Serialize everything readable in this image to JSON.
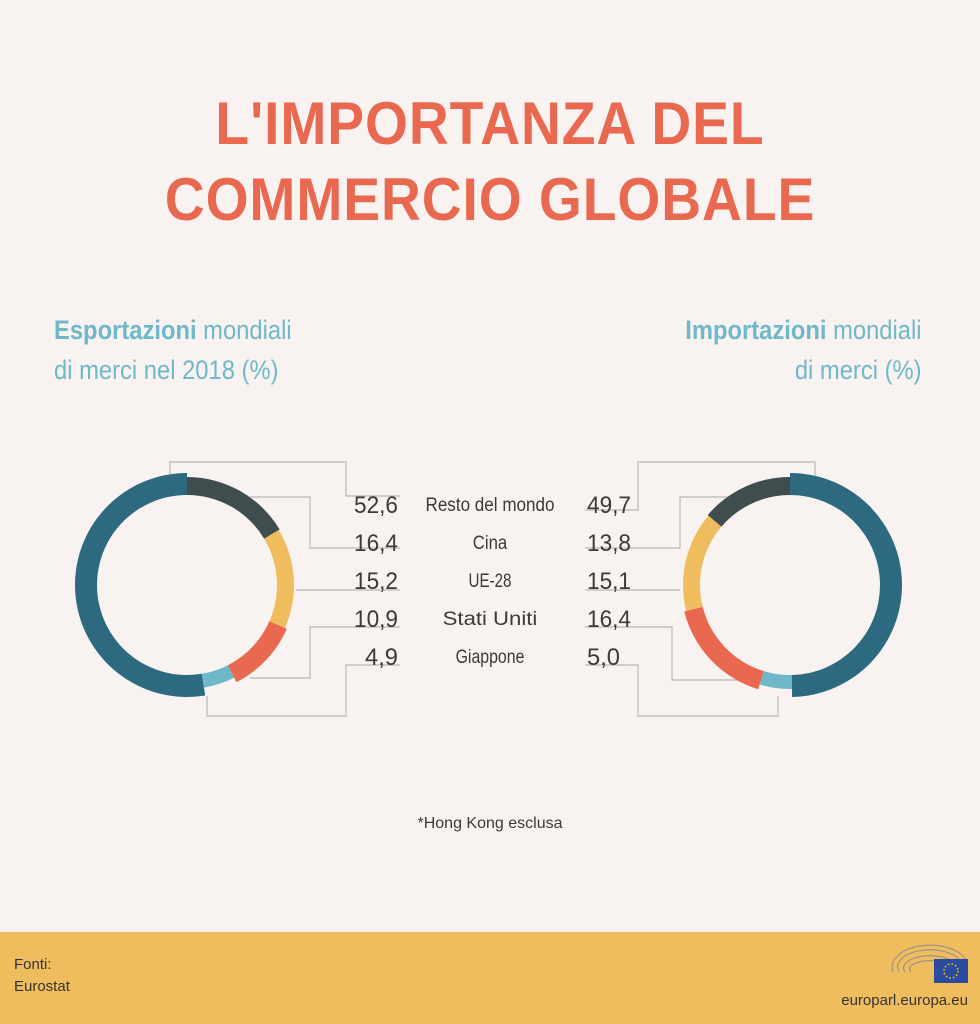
{
  "title": [
    "L'IMPORTANZA DEL",
    "COMMERCIO GLOBALE"
  ],
  "left_subtitle": {
    "bold": "Esportazioni",
    "rest1": " mondiali",
    "line2": "di merci nel 2018 (%)"
  },
  "right_subtitle": {
    "bold": "Importazioni",
    "rest1": " mondiali",
    "line2": "di merci (%)"
  },
  "chart_data": [
    {
      "type": "pie",
      "title": "Esportazioni mondiali di merci nel 2018 (%)",
      "categories": [
        "Resto del mondo",
        "Cina",
        "UE-28",
        "Stati Uniti",
        "Giappone"
      ],
      "values": [
        52.6,
        16.4,
        15.2,
        10.9,
        4.9
      ],
      "labels": [
        "52,6",
        "16,4",
        "15,2",
        "10,9",
        "4,9"
      ]
    },
    {
      "type": "pie",
      "title": "Importazioni mondiali di merci (%)",
      "categories": [
        "Resto del mondo",
        "Cina",
        "UE-28",
        "Stati Uniti",
        "Giappone"
      ],
      "values": [
        49.7,
        13.8,
        15.1,
        16.4,
        5.0
      ],
      "labels": [
        "49,7",
        "13,8",
        "15,1",
        "16,4",
        "5,0"
      ]
    }
  ],
  "colors": [
    "#2d6a80",
    "#404d4f",
    "#f0bd5e",
    "#e8694f",
    "#6fb8c9"
  ],
  "note": "*Hong Kong esclusa",
  "footer": {
    "source_label": "Fonti:",
    "source": "Eurostat",
    "site": "europarl.europa.eu"
  }
}
